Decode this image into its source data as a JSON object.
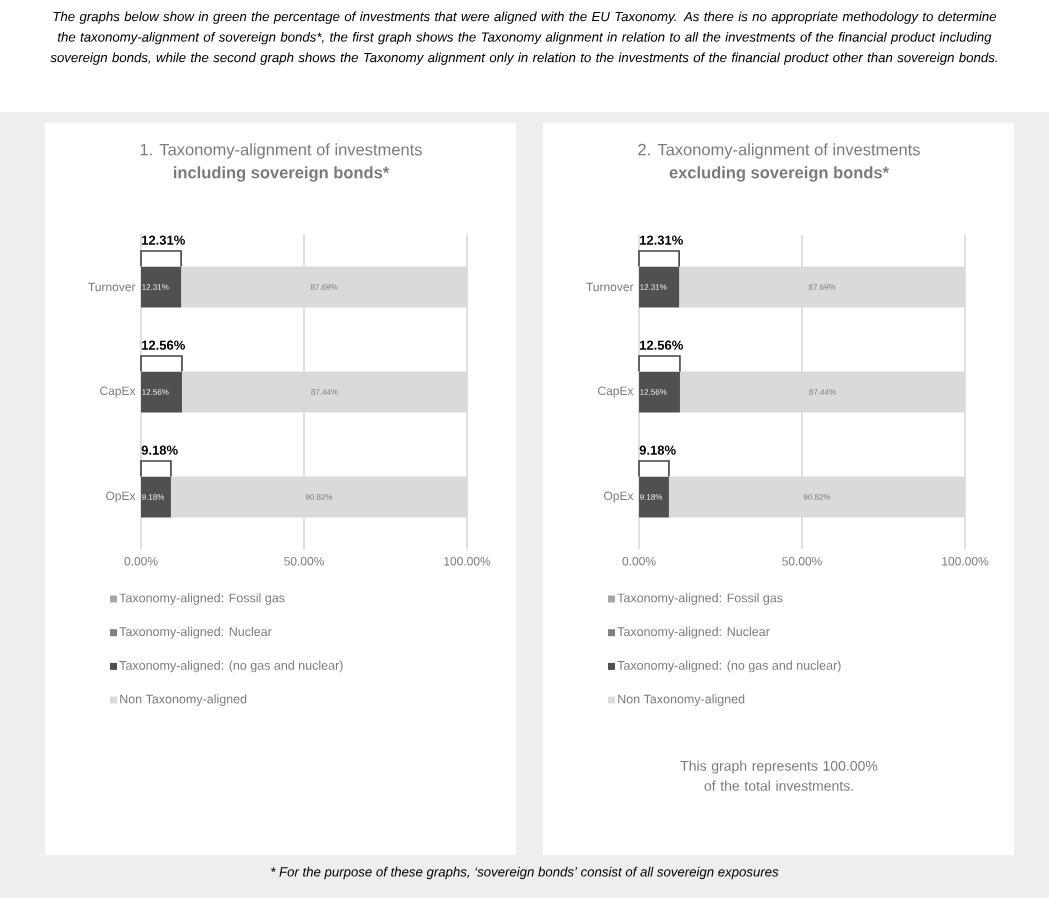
{
  "chart_data": [
    {
      "type": "bar",
      "orientation": "horizontal",
      "stacked": true,
      "title": "1. Taxonomy-alignment of investments",
      "subtitle": "including sovereign bonds*",
      "categories": [
        "Turnover",
        "CapEx",
        "OpEx"
      ],
      "series": [
        {
          "name": "Taxonomy-aligned: Fossil gas",
          "color": "#a6a6a6",
          "values": [
            0,
            0,
            0
          ]
        },
        {
          "name": "Taxonomy-aligned: Nuclear",
          "color": "#808080",
          "values": [
            0,
            0,
            0
          ]
        },
        {
          "name": "Taxonomy-aligned: (no gas and nuclear)",
          "color": "#505050",
          "values": [
            12.31,
            12.56,
            9.18
          ],
          "value_labels": [
            "12.31%",
            "12.56%",
            "9.18%"
          ]
        },
        {
          "name": "Non Taxonomy-aligned",
          "color": "#dadada",
          "values": [
            87.69,
            87.44,
            90.82
          ],
          "value_labels": [
            "87.69%",
            "87.44%",
            "90.82%"
          ]
        }
      ],
      "xlim": [
        0,
        100
      ],
      "xticks": [
        {
          "value": 0,
          "label": "0.00%"
        },
        {
          "value": 50,
          "label": "50.00%"
        },
        {
          "value": 100,
          "label": "100.00%"
        }
      ],
      "grid": "x",
      "legend": "bottom",
      "annotations": [
        "12.31%",
        "12.56%",
        "9.18%",
        "The graphs below show in green the percentage of investments that were aligned with the EU Taxonomy.  As there is no appropriate methodology to determine the taxonomy-alignment of sovereign bonds*, the first graph shows the Taxonomy alignment in relation to all the investments of the financial product including sovereign bonds, while the second graph shows the Taxonomy alignment only in relation to the investments of the financial product other than sovereign bonds.",
        "* For the purpose of these graphs, ‘sovereign bonds’ consist of all sovereign exposures"
      ]
    },
    {
      "type": "bar",
      "orientation": "horizontal",
      "stacked": true,
      "title": "2. Taxonomy-alignment of investments",
      "subtitle": "excluding sovereign bonds*",
      "categories": [
        "Turnover",
        "CapEx",
        "OpEx"
      ],
      "series": [
        {
          "name": "Taxonomy-aligned: Fossil gas",
          "color": "#a6a6a6",
          "values": [
            0,
            0,
            0
          ]
        },
        {
          "name": "Taxonomy-aligned: Nuclear",
          "color": "#808080",
          "values": [
            0,
            0,
            0
          ]
        },
        {
          "name": "Taxonomy-aligned: (no gas and nuclear)",
          "color": "#505050",
          "values": [
            12.31,
            12.56,
            9.18
          ],
          "value_labels": [
            "12.31%",
            "12.56%",
            "9.18%"
          ]
        },
        {
          "name": "Non Taxonomy-aligned",
          "color": "#dadada",
          "values": [
            87.69,
            87.44,
            90.82
          ],
          "value_labels": [
            "87.69%",
            "87.44%",
            "90.82%"
          ]
        }
      ],
      "xlim": [
        0,
        100
      ],
      "xticks": [
        {
          "value": 0,
          "label": "0.00%"
        },
        {
          "value": 50,
          "label": "50.00%"
        },
        {
          "value": 100,
          "label": "100.00%"
        }
      ],
      "grid": "x",
      "legend": "bottom",
      "annotations": [
        "12.31%",
        "12.56%",
        "9.18%",
        "This graph represents 100.00% of the total investments."
      ]
    }
  ]
}
